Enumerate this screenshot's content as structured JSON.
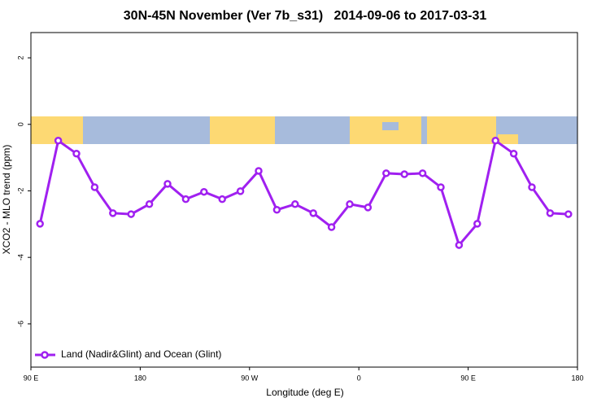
{
  "chart_data": {
    "type": "line",
    "title": "30N-45N November (Ver 7b_s31)   2014-09-06 to 2017-03-31",
    "x_label": "Longitude (deg E)",
    "y_label": "XCO2 - MLO trend (ppm)",
    "xlim": [
      90,
      540
    ],
    "ylim": [
      -7.3,
      2.76
    ],
    "xticks": [
      {
        "value": 90,
        "label": "90 E"
      },
      {
        "value": 180,
        "label": "180"
      },
      {
        "value": 270,
        "label": "90 W"
      },
      {
        "value": 360,
        "label": "0"
      },
      {
        "value": 450,
        "label": "90 E"
      },
      {
        "value": 540,
        "label": "180"
      }
    ],
    "yticks": [
      2,
      0,
      -2,
      -4,
      -6
    ],
    "legend": "bottom-left",
    "x": [
      97.5,
      112.5,
      127.5,
      142.5,
      157.5,
      172.5,
      187.5,
      202.5,
      217.5,
      232.5,
      247.5,
      262.5,
      277.5,
      292.5,
      307.5,
      322.5,
      337.5,
      352.5,
      367.5,
      382.5,
      397.5,
      412.5,
      427.5,
      442.5,
      457.5,
      472.5,
      487.5,
      502.5,
      517.5,
      532.5
    ],
    "series": [
      {
        "name": "Land (Nadir&Glint) and Ocean (Glint)",
        "color": "#a020f0",
        "values": [
          -2.99,
          -0.49,
          -0.88,
          -1.89,
          -2.67,
          -2.7,
          -2.4,
          -1.79,
          -2.25,
          -2.03,
          -2.25,
          -2.01,
          -1.4,
          -2.57,
          -2.4,
          -2.67,
          -3.09,
          -2.4,
          -2.5,
          -1.47,
          -1.5,
          -1.47,
          -1.89,
          -3.63,
          -2.99,
          -0.49,
          -0.88,
          -1.89,
          -2.67,
          -2.7
        ]
      }
    ]
  }
}
